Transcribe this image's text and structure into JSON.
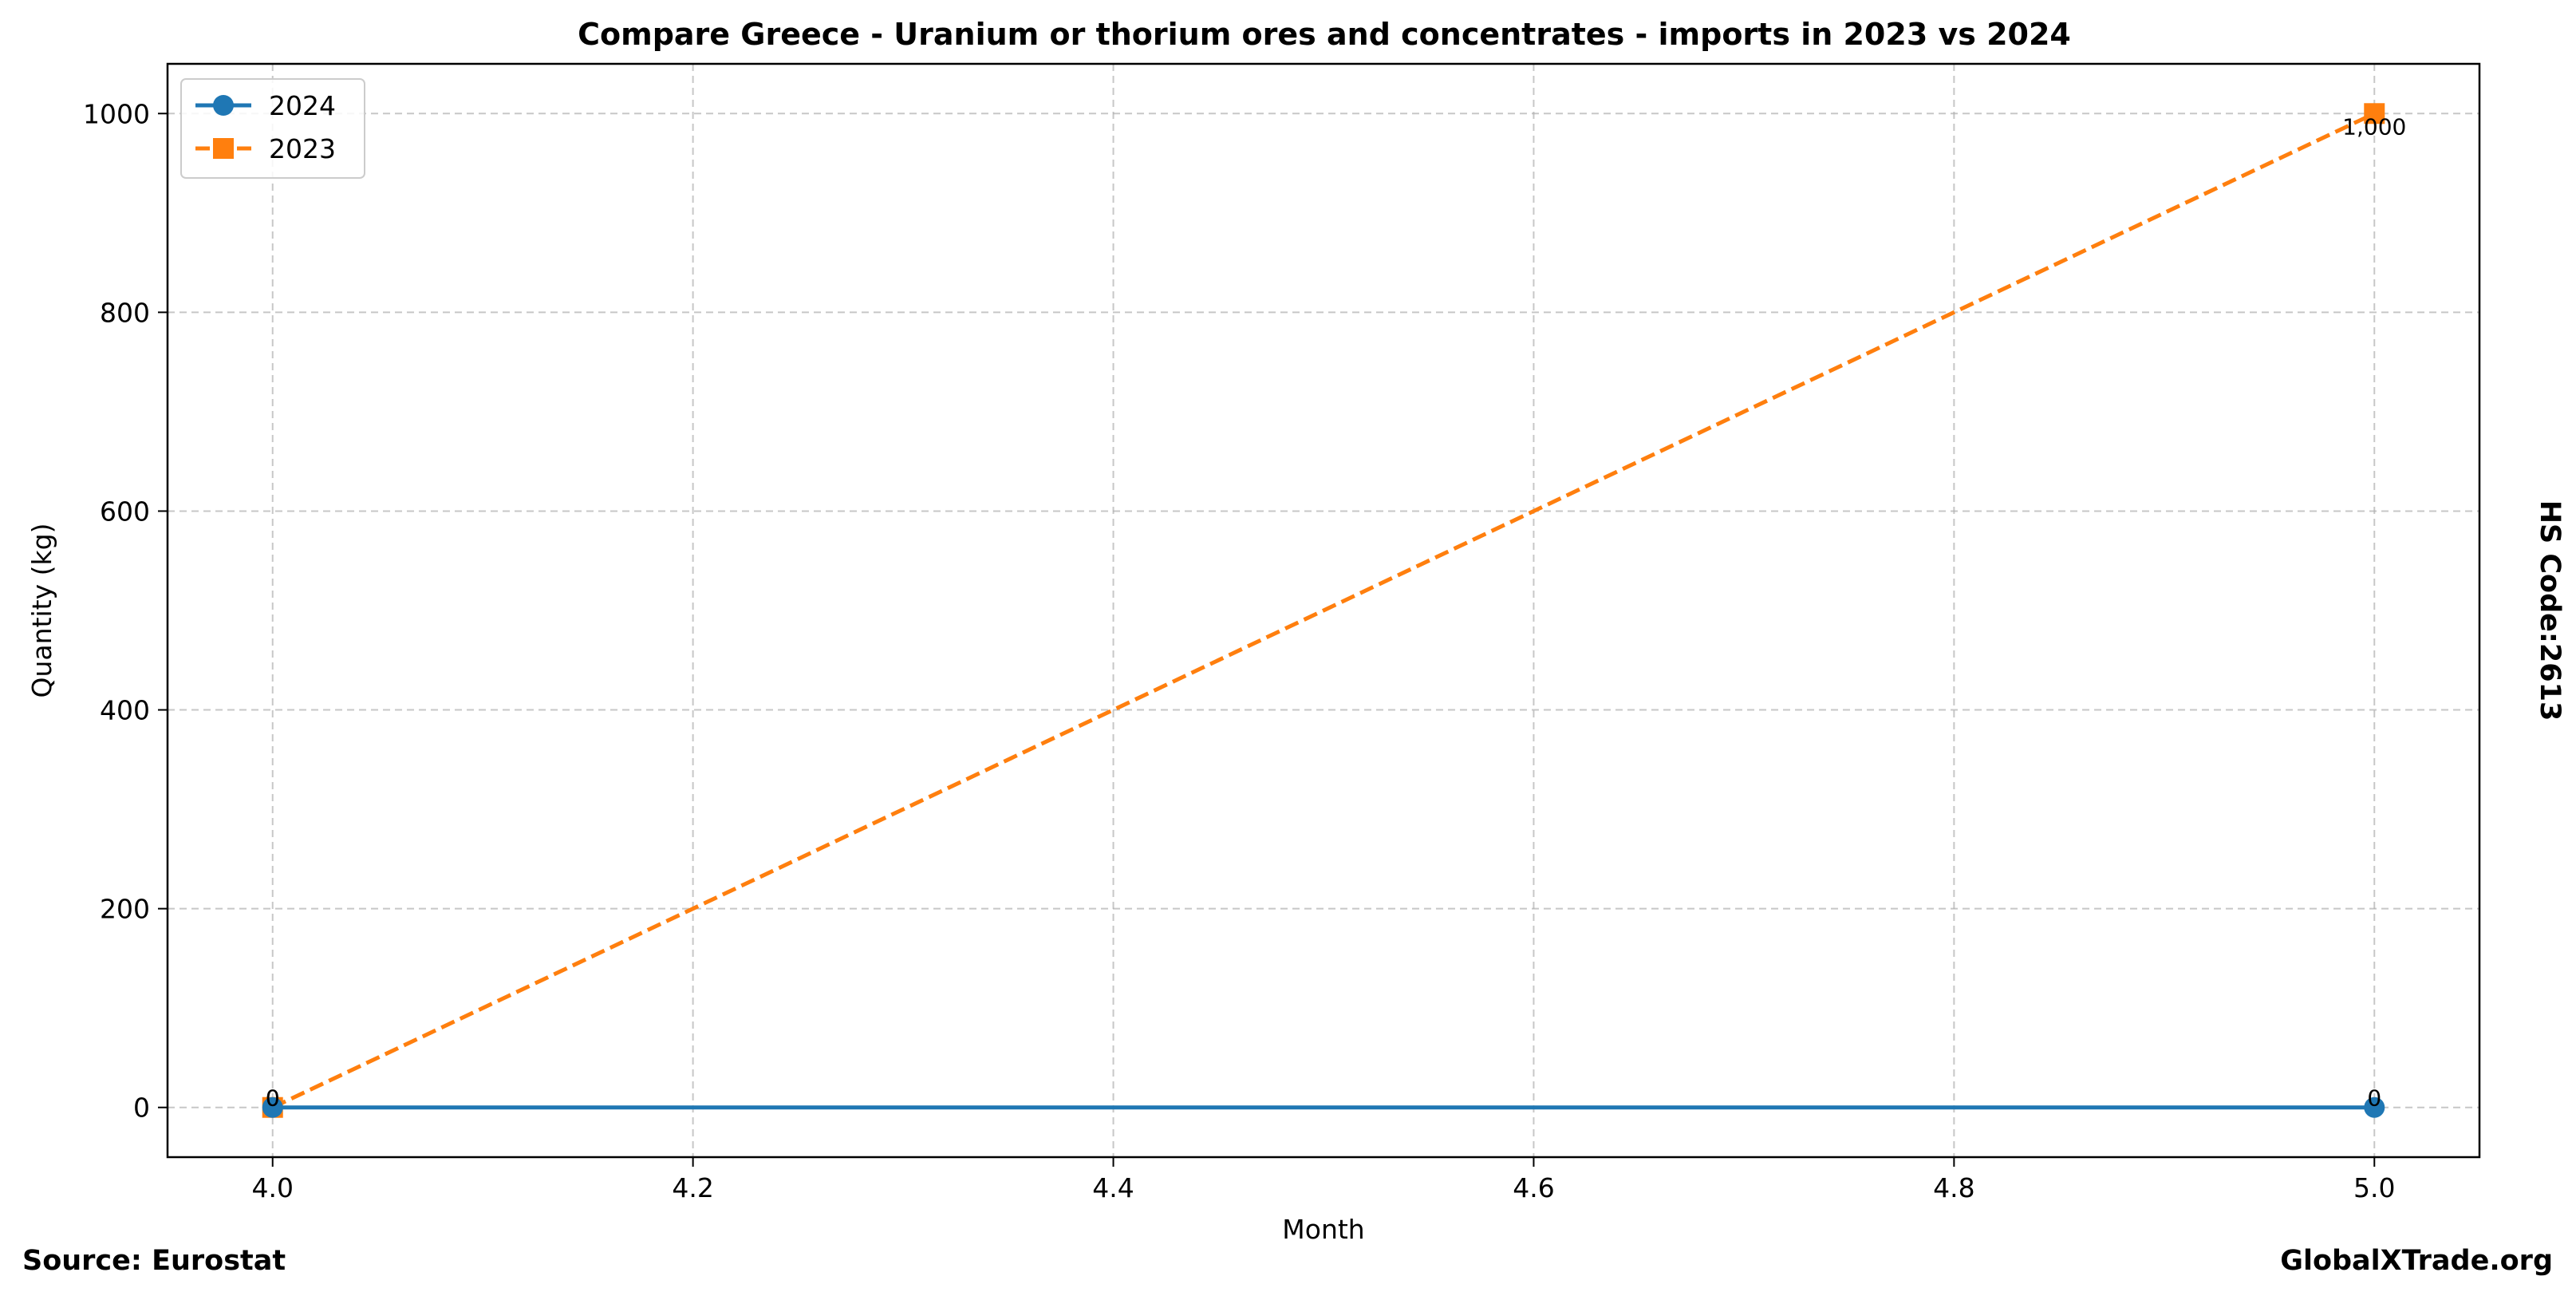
{
  "chart_data": {
    "type": "line",
    "title": "Compare Greece - Uranium or thorium ores and concentrates - imports in 2023 vs 2024",
    "xlabel": "Month",
    "ylabel": "Quantity (kg)",
    "xlim": [
      3.95,
      5.05
    ],
    "ylim": [
      -50,
      1050
    ],
    "xticks": [
      4.0,
      4.2,
      4.4,
      4.6,
      4.8,
      5.0
    ],
    "xtick_labels": [
      "4.0",
      "4.2",
      "4.4",
      "4.6",
      "4.8",
      "5.0"
    ],
    "yticks": [
      0,
      200,
      400,
      600,
      800,
      1000
    ],
    "ytick_labels": [
      "0",
      "200",
      "400",
      "600",
      "800",
      "1000"
    ],
    "grid": true,
    "legend_position": "top-left",
    "series": [
      {
        "name": "2024",
        "color": "#1f77b4",
        "marker": "circle",
        "dash": "solid",
        "x": [
          4.0,
          5.0
        ],
        "y": [
          0,
          0
        ],
        "labels": [
          "0",
          "0"
        ]
      },
      {
        "name": "2023",
        "color": "#ff7f0e",
        "marker": "square",
        "dash": "dashed",
        "x": [
          4.0,
          5.0
        ],
        "y": [
          0,
          1000
        ],
        "labels": [
          "0",
          "1,000"
        ]
      }
    ],
    "side_label": "HS Code:2613",
    "source_label": "Source: Eurostat",
    "brand_label": "GlobalXTrade.org"
  }
}
